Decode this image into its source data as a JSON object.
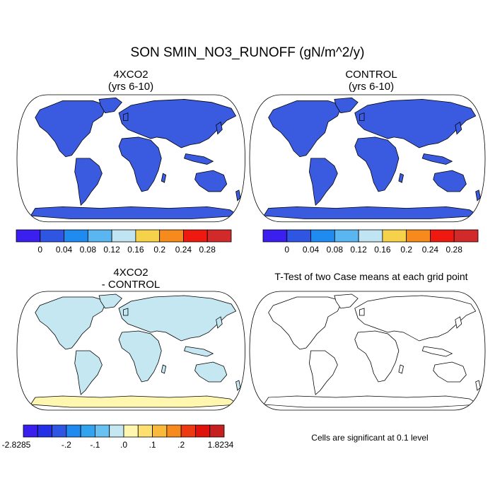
{
  "title": "SON SMIN_NO3_RUNOFF (gN/m^2/y)",
  "panels": {
    "tl": {
      "title_line1": "4XCO2",
      "title_line2": "(yrs 6-10)"
    },
    "tr": {
      "title_line1": "CONTROL",
      "title_line2": "(yrs 6-10)"
    },
    "bl": {
      "title_line1": "4XCO2",
      "title_line2": "- CONTROL"
    },
    "br": {
      "title_line1": "T-Test of two Case means at each grid point"
    }
  },
  "colorbar_abs": {
    "colors": [
      "#3b1fef",
      "#2f55e3",
      "#1f8af0",
      "#5ab6f0",
      "#c0e4f2",
      "#f6d24a",
      "#f78a1c",
      "#ee1a0f",
      "#d22a2a"
    ],
    "labels": [
      "0",
      "0.04",
      "0.08",
      "0.12",
      "0.16",
      "0.2",
      "0.24",
      "0.28"
    ]
  },
  "colorbar_diff": {
    "colors": [
      "#3b1fef",
      "#2430e6",
      "#2f55e3",
      "#1f8af0",
      "#32a3ee",
      "#68c1f0",
      "#c5e7f2",
      "#fff6b0",
      "#fde070",
      "#f9b93a",
      "#f78a1c",
      "#ee3a10",
      "#e0120c",
      "#c62020"
    ],
    "labels": [
      "-2.8285",
      "-.2",
      "-.1",
      ".0",
      ".1",
      ".2",
      "1.8234"
    ]
  },
  "ttest_note": "Cells are significant at 0.1 level",
  "map_colors": {
    "ocean": "#ffffff",
    "land_abs": "#3a5be0",
    "antarctica_abs": "#3a5be0",
    "land_diff": "#c5e7f2",
    "antarctica_diff": "#fff6b0",
    "significant": "#e60f0f"
  }
}
